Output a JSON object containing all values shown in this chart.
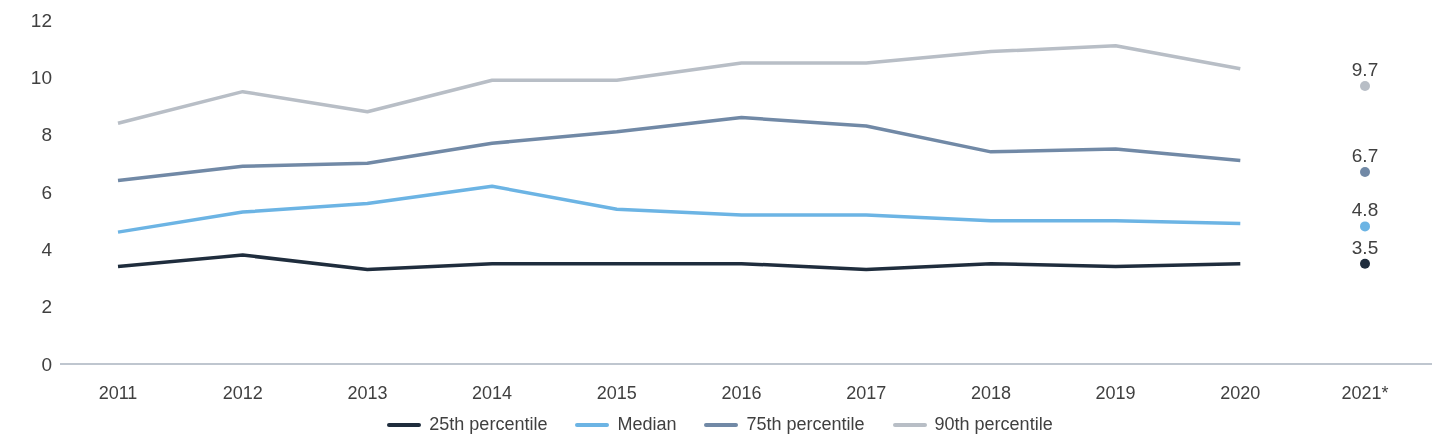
{
  "chart_data": {
    "type": "line",
    "categories": [
      "2011",
      "2012",
      "2013",
      "2014",
      "2015",
      "2016",
      "2017",
      "2018",
      "2019",
      "2020",
      "2021*"
    ],
    "ylim": [
      0,
      12
    ],
    "yticks": [
      0,
      2,
      4,
      6,
      8,
      10,
      12
    ],
    "grid": false,
    "legend": "bottom",
    "series": [
      {
        "name": "25th percentile",
        "color": "#1f2d3d",
        "values": [
          3.4,
          3.8,
          3.3,
          3.5,
          3.5,
          3.5,
          3.3,
          3.5,
          3.4,
          3.5,
          null
        ]
      },
      {
        "name": "Median",
        "color": "#6cb4e4",
        "values": [
          4.6,
          5.3,
          5.6,
          6.2,
          5.4,
          5.2,
          5.2,
          5.0,
          5.0,
          4.9,
          null
        ]
      },
      {
        "name": "75th percentile",
        "color": "#7189a6",
        "values": [
          6.4,
          6.9,
          7.0,
          7.7,
          8.1,
          8.6,
          8.3,
          7.4,
          7.5,
          7.1,
          null
        ]
      },
      {
        "name": "90th percentile",
        "color": "#b8bec6",
        "values": [
          8.4,
          9.5,
          8.8,
          9.9,
          9.9,
          10.5,
          10.5,
          10.9,
          11.1,
          10.3,
          null
        ]
      },
      {
        "type": "scatter",
        "color": "#1f2d3d",
        "values": [
          null,
          null,
          null,
          null,
          null,
          null,
          null,
          null,
          null,
          null,
          3.5
        ],
        "value_labels": [
          null,
          null,
          null,
          null,
          null,
          null,
          null,
          null,
          null,
          null,
          "3.5"
        ]
      },
      {
        "type": "scatter",
        "color": "#6cb4e4",
        "values": [
          null,
          null,
          null,
          null,
          null,
          null,
          null,
          null,
          null,
          null,
          4.8
        ],
        "value_labels": [
          null,
          null,
          null,
          null,
          null,
          null,
          null,
          null,
          null,
          null,
          "4.8"
        ]
      },
      {
        "type": "scatter",
        "color": "#7189a6",
        "values": [
          null,
          null,
          null,
          null,
          null,
          null,
          null,
          null,
          null,
          null,
          6.7
        ],
        "value_labels": [
          null,
          null,
          null,
          null,
          null,
          null,
          null,
          null,
          null,
          null,
          "6.7"
        ]
      },
      {
        "type": "scatter",
        "color": "#b8bec6",
        "values": [
          null,
          null,
          null,
          null,
          null,
          null,
          null,
          null,
          null,
          null,
          9.7
        ],
        "value_labels": [
          null,
          null,
          null,
          null,
          null,
          null,
          null,
          null,
          null,
          null,
          "9.7"
        ]
      }
    ]
  }
}
